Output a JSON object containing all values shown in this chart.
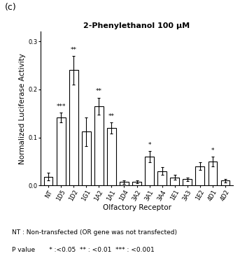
{
  "title": "2-Phenylethanol 100 μM",
  "xlabel": "Olfactory Receptor",
  "ylabel": "Normalized Luciferase Activity",
  "categories": [
    "NT",
    "1D5",
    "1D2",
    "1G1",
    "1A2",
    "1A1",
    "1D4",
    "3A2",
    "3A1",
    "3A4",
    "1E1",
    "3A3",
    "1E2",
    "4D1",
    "4D2"
  ],
  "values": [
    0.018,
    0.142,
    0.24,
    0.112,
    0.165,
    0.12,
    0.007,
    0.008,
    0.06,
    0.03,
    0.017,
    0.013,
    0.04,
    0.05,
    0.01
  ],
  "errors": [
    0.008,
    0.01,
    0.03,
    0.03,
    0.018,
    0.012,
    0.003,
    0.003,
    0.012,
    0.008,
    0.005,
    0.004,
    0.008,
    0.01,
    0.004
  ],
  "significance": [
    "",
    "***",
    "**",
    "",
    "**",
    "**",
    "",
    "",
    "*",
    "",
    "",
    "",
    "",
    "*",
    ""
  ],
  "ylim": [
    0,
    0.32
  ],
  "yticks": [
    0.0,
    0.1,
    0.2,
    0.3
  ],
  "bar_color": "#ffffff",
  "bar_edgecolor": "#000000",
  "background_color": "#ffffff",
  "panel_label": "(c)",
  "footnote1": "NT : Non-transfected (OR gene was not transfected)",
  "footnote2": "P value       * :<0.05  ** : <0.01  *** : <0.001",
  "title_fontsize": 8,
  "axis_label_fontsize": 7.5,
  "tick_fontsize": 6,
  "sig_fontsize": 6.5,
  "footnote_fontsize": 6.5
}
